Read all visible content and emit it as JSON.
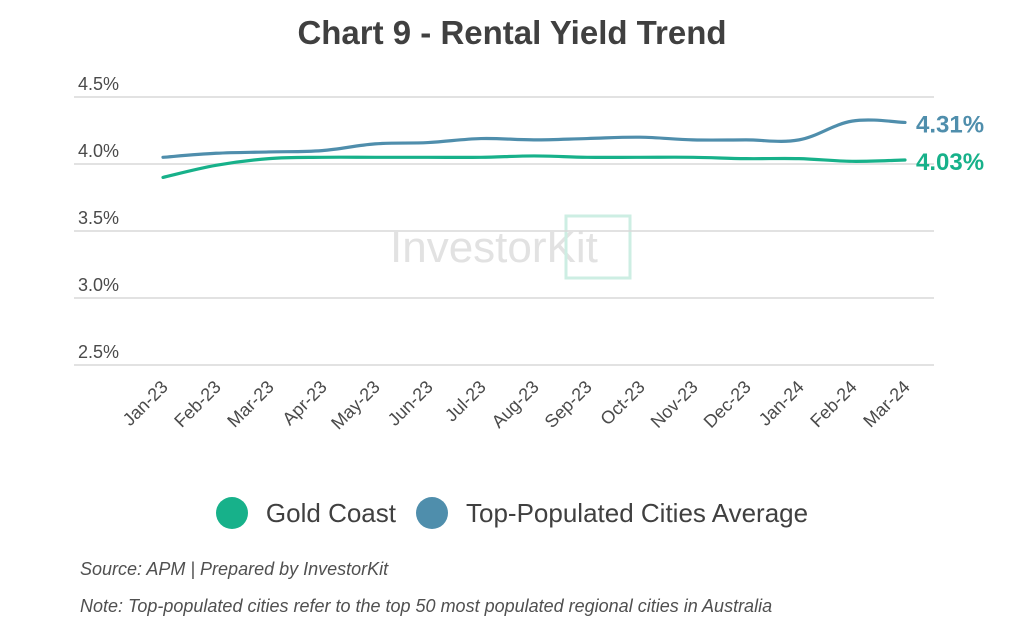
{
  "chart_data": {
    "type": "line",
    "title": "Chart 9 - Rental Yield Trend",
    "xlabel": "",
    "ylabel": "",
    "categories": [
      "Jan-23",
      "Feb-23",
      "Mar-23",
      "Apr-23",
      "May-23",
      "Jun-23",
      "Jul-23",
      "Aug-23",
      "Sep-23",
      "Oct-23",
      "Nov-23",
      "Dec-23",
      "Jan-24",
      "Feb-24",
      "Mar-24"
    ],
    "yticks": [
      "4.5%",
      "4.0%",
      "3.5%",
      "3.0%",
      "2.5%"
    ],
    "ylim": [
      2.5,
      4.5
    ],
    "grid": true,
    "legend_position": "bottom",
    "series": [
      {
        "name": "Gold Coast",
        "color": "#17b18a",
        "values": [
          3.9,
          3.99,
          4.04,
          4.05,
          4.05,
          4.05,
          4.05,
          4.06,
          4.05,
          4.05,
          4.05,
          4.04,
          4.04,
          4.02,
          4.03
        ],
        "end_label": "4.03%"
      },
      {
        "name": "Top-Populated Cities Average",
        "color": "#4f8eac",
        "values": [
          4.05,
          4.08,
          4.09,
          4.1,
          4.15,
          4.16,
          4.19,
          4.18,
          4.19,
          4.2,
          4.18,
          4.18,
          4.18,
          4.32,
          4.31
        ],
        "end_label": "4.31%"
      }
    ],
    "watermark": "InvestorKit"
  },
  "footer": {
    "source": "Source: APM | Prepared by InvestorKit",
    "note": "Note: Top-populated cities refer to the top 50 most populated regional cities in Australia"
  }
}
